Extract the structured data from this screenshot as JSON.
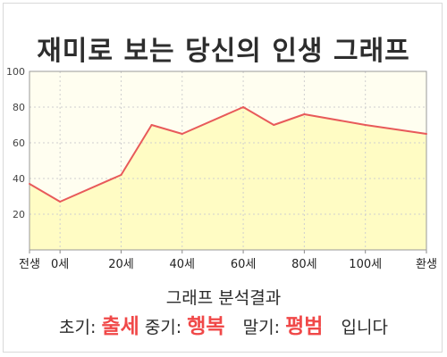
{
  "title": "재미로 보는 당신의 인생 그래프",
  "chart_data": {
    "type": "area",
    "x": [
      -10,
      0,
      20,
      30,
      40,
      60,
      70,
      80,
      100,
      120
    ],
    "series": [
      {
        "values": [
          37,
          27,
          42,
          70,
          65,
          80,
          70,
          76,
          70,
          65
        ]
      }
    ],
    "x_ticks": [
      {
        "x": -10,
        "label": "전생"
      },
      {
        "x": 0,
        "label": "0세"
      },
      {
        "x": 20,
        "label": "20세"
      },
      {
        "x": 40,
        "label": "40세"
      },
      {
        "x": 60,
        "label": "60세"
      },
      {
        "x": 80,
        "label": "80세"
      },
      {
        "x": 100,
        "label": "100세"
      },
      {
        "x": 120,
        "label": "환생"
      }
    ],
    "y_ticks": [
      20,
      40,
      60,
      80,
      100
    ],
    "xlim": [
      -10,
      120
    ],
    "ylim": [
      0,
      100
    ],
    "line_color": "#e85a5a",
    "fill_color": "#fffcc4",
    "plot_bg": "#fffef0",
    "grid": true
  },
  "footer": {
    "heading": "그래프 분석결과",
    "early_label": "초기:",
    "early_value": "출세",
    "mid_label": "중기:",
    "mid_value": "행복",
    "late_label": "말기:",
    "late_value": "평범",
    "ending": "입니다"
  }
}
